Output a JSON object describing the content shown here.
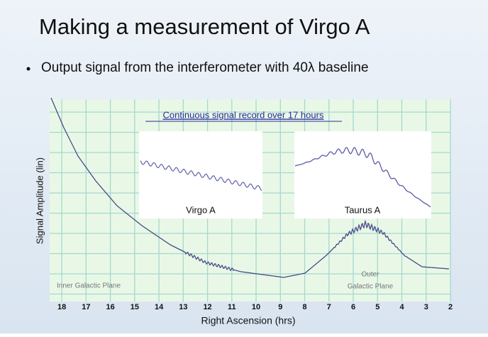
{
  "slide": {
    "title": "Making a measurement of Virgo A",
    "bullet": "Output signal from the interferometer with 40λ baseline"
  },
  "chart_data": {
    "type": "line",
    "xlabel": "Right Ascension (hrs)",
    "ylabel": "Signal Amplitude (lin)",
    "xlim": [
      18.5,
      2
    ],
    "xticks": [
      18,
      17,
      16,
      15,
      14,
      13,
      12,
      11,
      10,
      9,
      8,
      7,
      6,
      5,
      4,
      3,
      2
    ],
    "grid": true,
    "inset_title": "Continuous signal record over 17 hours",
    "insets": [
      {
        "label": "Virgo A"
      },
      {
        "label": "Taurus A"
      }
    ],
    "annotations": [
      "Inner Galactic Plane",
      "Outer",
      "Galactic Plane"
    ]
  }
}
